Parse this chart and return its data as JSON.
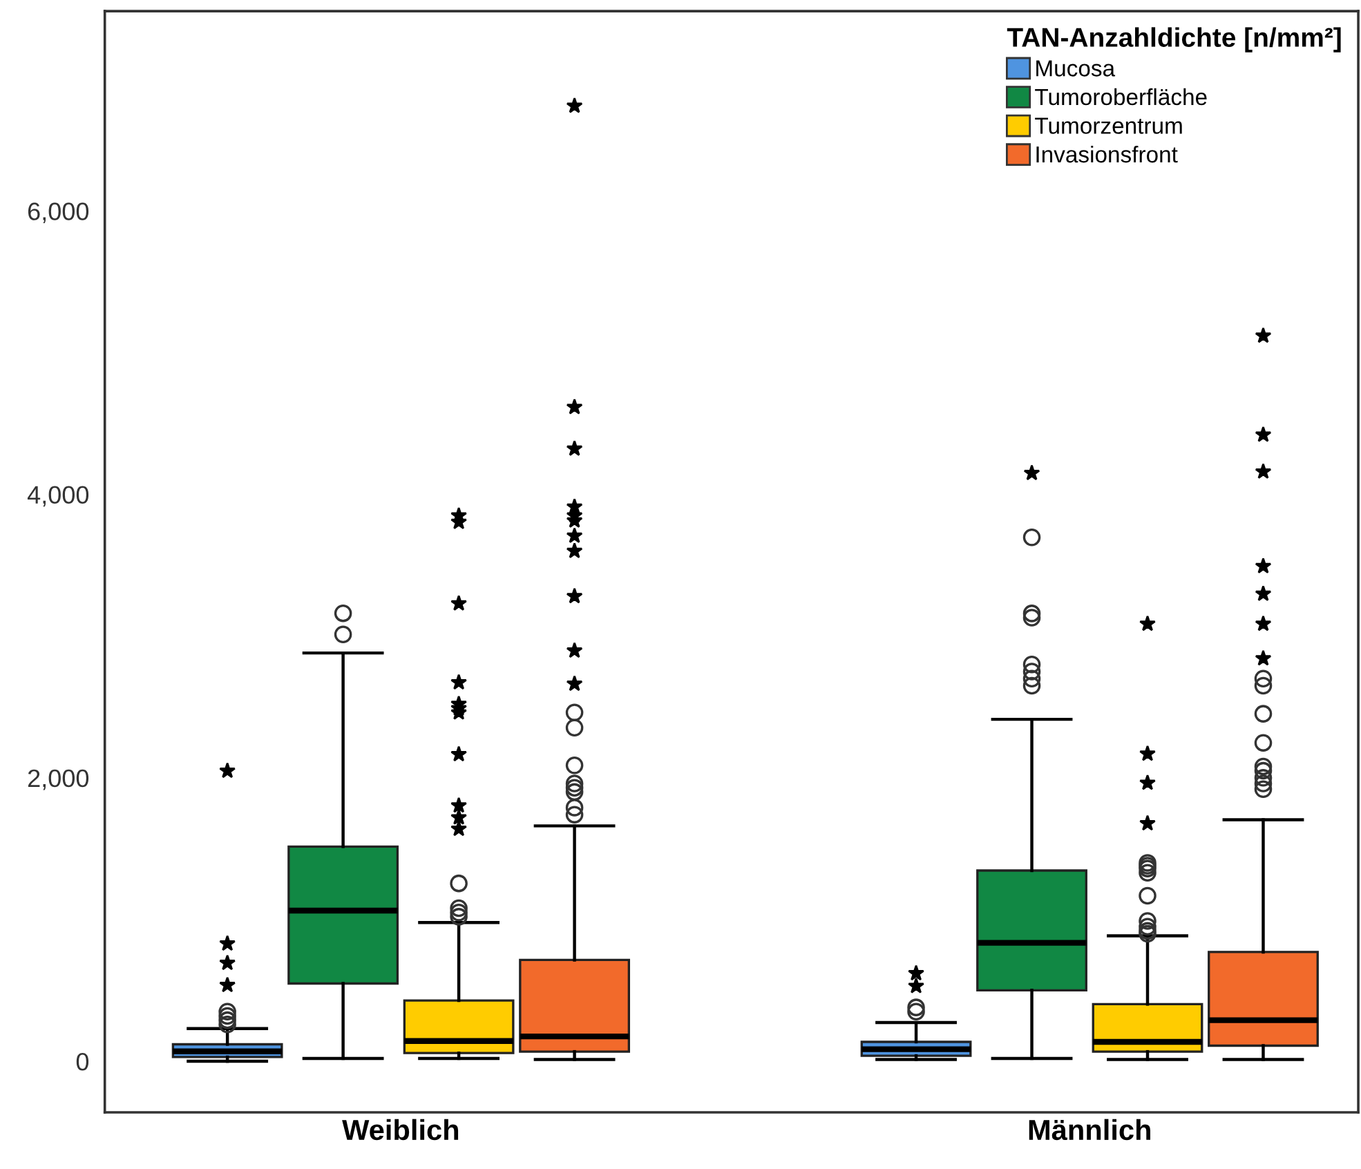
{
  "chart_data": {
    "type": "box",
    "categories": [
      "Weiblich",
      "Männlich"
    ],
    "legend_title": "TAN-Anzahldichte [n/mm²]",
    "legend": "top right",
    "grid": false,
    "ylim": [
      -360,
      7410
    ],
    "yticks": [
      0,
      {
        "value": 2000,
        "label": "2,000"
      },
      {
        "value": 4000,
        "label": "4,000"
      },
      {
        "value": 6000,
        "label": "6,000"
      }
    ],
    "series": [
      {
        "name": "Mucosa",
        "color": "#4f94e0",
        "boxes": [
          {
            "low": 0,
            "q1": 30,
            "median": 70,
            "q3": 120,
            "high": 231,
            "outliers": [
              260,
              290,
              320,
              350,
              537,
              693,
              830,
              2049
            ]
          },
          {
            "low": 13,
            "q1": 39,
            "median": 85,
            "q3": 137,
            "high": 273,
            "outliers": [
              350,
              380,
              530,
              620
            ]
          }
        ]
      },
      {
        "name": "Tumoroberfläche",
        "color": "#118844",
        "boxes": [
          {
            "low": 20,
            "q1": 549,
            "median": 1063,
            "q3": 1515,
            "high": 2881,
            "outliers": [
              3012,
              3161
            ]
          },
          {
            "low": 20,
            "q1": 501,
            "median": 836,
            "q3": 1346,
            "high": 2413,
            "outliers": [
              2650,
              2700,
              2750,
              2800,
              3130,
              3160,
              3697,
              4150
            ]
          }
        ]
      },
      {
        "name": "Tumorzentrum",
        "color": "#ffcc00",
        "boxes": [
          {
            "low": 20,
            "q1": 58,
            "median": 143,
            "q3": 429,
            "high": 979,
            "outliers": [
              1020,
              1050,
              1080,
              1255,
              1639,
              1720,
              1804,
              2166,
              2460,
              2490,
              2520,
              2673,
              3230,
              3805,
              3850
            ]
          },
          {
            "low": 13,
            "q1": 68,
            "median": 137,
            "q3": 403,
            "high": 885,
            "outliers": [
              900,
              920,
              950,
              990,
              1168,
              1330,
              1360,
              1380,
              1400,
              1678,
              1964,
              2169,
              3086
            ]
          }
        ]
      },
      {
        "name": "Invasionsfront",
        "color": "#f26a2b",
        "boxes": [
          {
            "low": 13,
            "q1": 68,
            "median": 175,
            "q3": 715,
            "high": 1661,
            "outliers": [
              1740,
              1790,
              1900,
              1930,
              1960,
              2088,
              2354,
              2461,
              2663,
              2897,
              3281,
              3600,
              3707,
              3815,
              3850,
              3912,
              4322,
              4615,
              6741
            ]
          },
          {
            "low": 13,
            "q1": 110,
            "median": 290,
            "q3": 771,
            "high": 1704,
            "outliers": [
              1920,
              1960,
              2000,
              2050,
              2080,
              2247,
              2452,
              2650,
              2700,
              2842,
              3086,
              3298,
              3493,
              4160,
              4420,
              5119
            ]
          }
        ]
      }
    ]
  }
}
